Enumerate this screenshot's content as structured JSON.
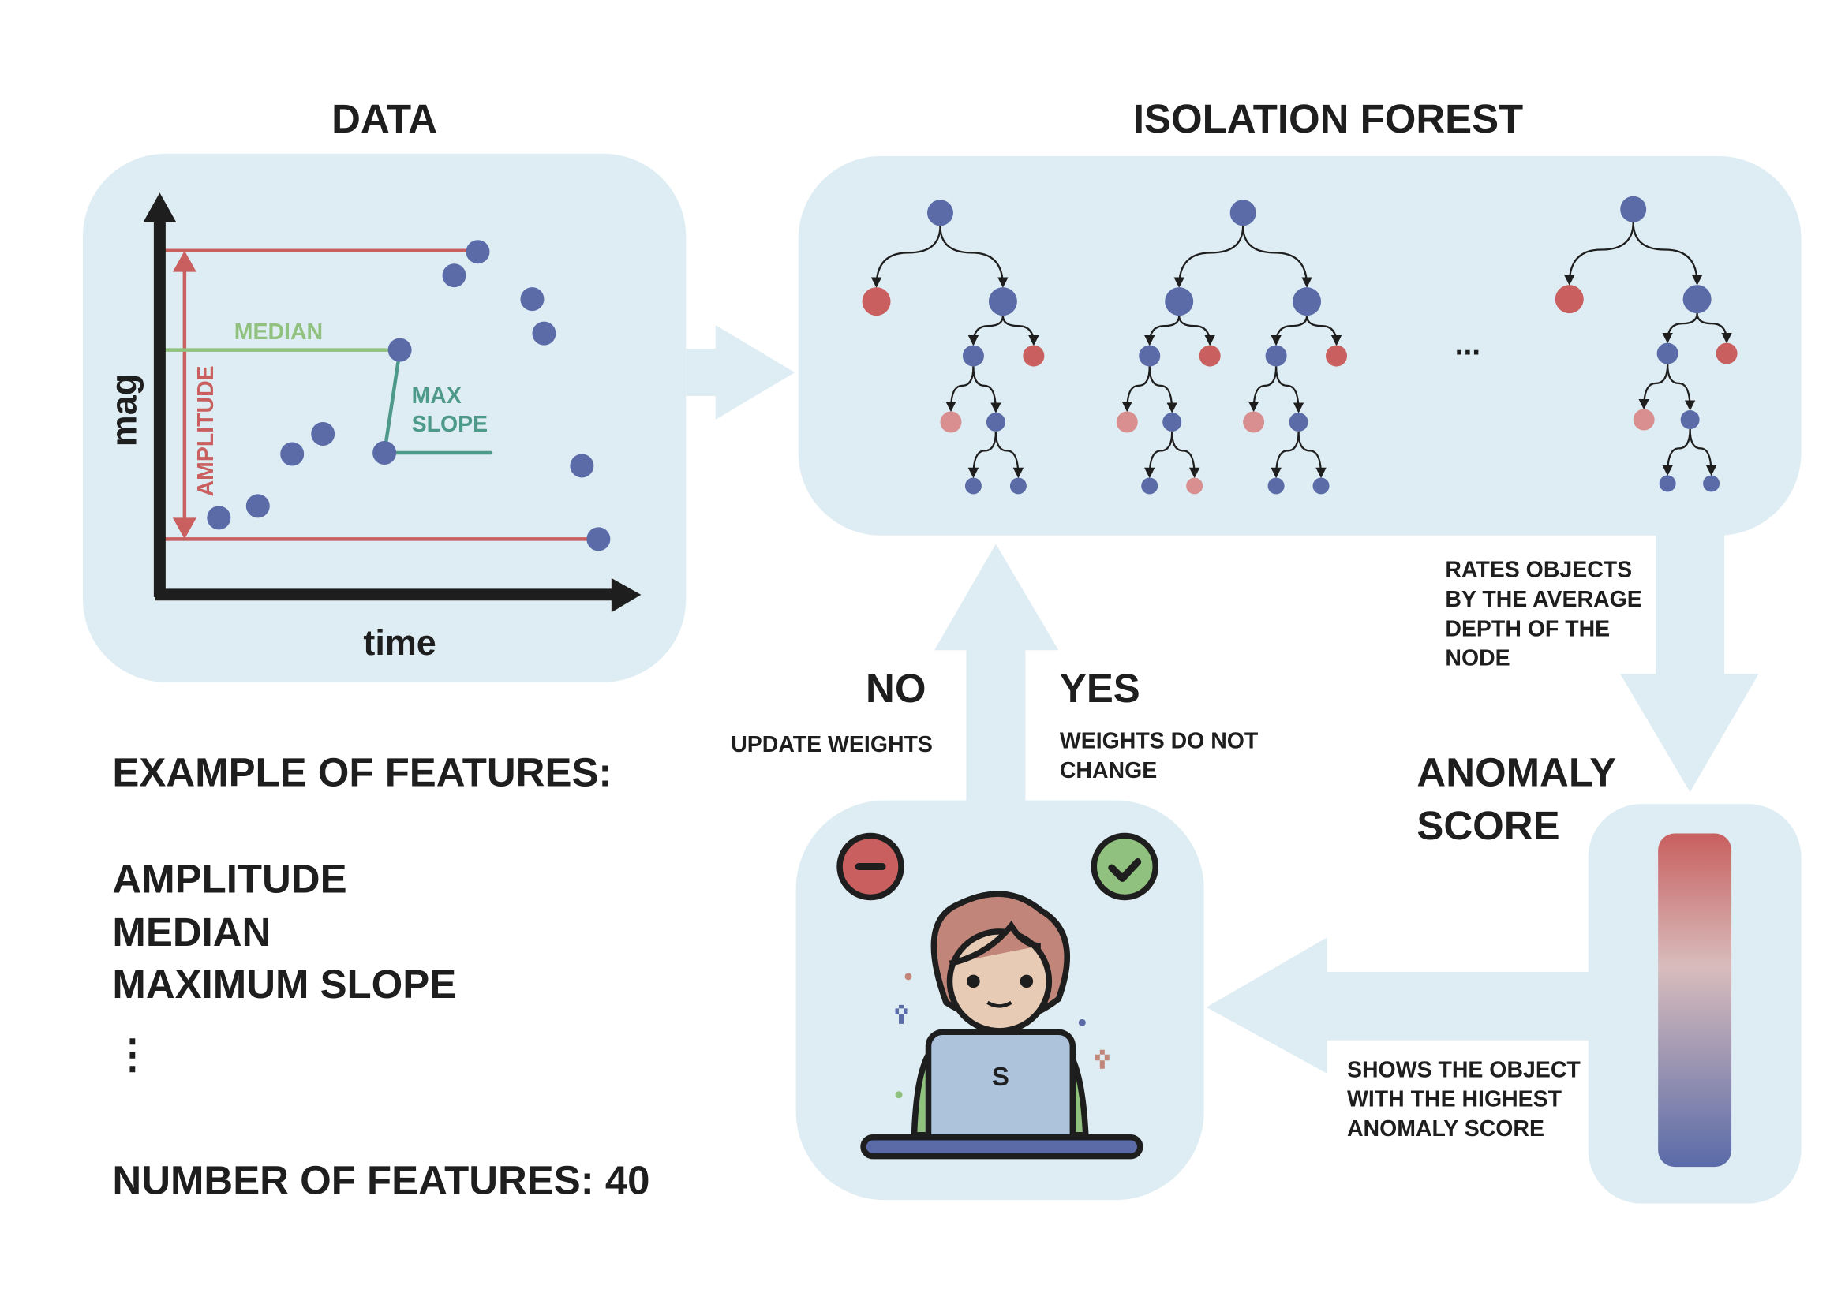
{
  "colors": {
    "panel": "#deedf3",
    "node": "#5a6ba8",
    "anomaly": "#c95f5f",
    "weak_anomaly": "#d98f8f",
    "median": "#91c17e",
    "slope": "#4e9a8a",
    "axis": "#1e1e1e"
  },
  "data_panel": {
    "title": "DATA",
    "y_axis": "mag",
    "x_axis": "time",
    "median_label": "MEDIAN",
    "amplitude_label": "AMPLITUDE",
    "slope_label_1": "MAX",
    "slope_label_2": "SLOPE"
  },
  "forest_panel": {
    "title": "ISOLATION FOREST",
    "ellipsis": "..."
  },
  "features": {
    "heading": "EXAMPLE OF FEATURES:",
    "items": [
      "AMPLITUDE",
      "MEDIAN",
      "MAXIMUM SLOPE"
    ],
    "more": "⋮",
    "count_label": "NUMBER OF FEATURES: 40"
  },
  "rating_note": [
    "RATES OBJECTS",
    "BY THE AVERAGE",
    "DEPTH OF THE",
    "NODE"
  ],
  "anomaly_score": {
    "title_1": "ANOMALY",
    "title_2": "SCORE"
  },
  "shows_note": [
    "SHOWS THE OBJECT",
    "WITH THE HIGHEST",
    "ANOMALY SCORE"
  ],
  "feedback": {
    "no_label": "NO",
    "no_note": "UPDATE WEIGHTS",
    "yes_label": "YES",
    "yes_note_1": "WEIGHTS DO NOT",
    "yes_note_2": "CHANGE",
    "laptop_logo": "S"
  }
}
